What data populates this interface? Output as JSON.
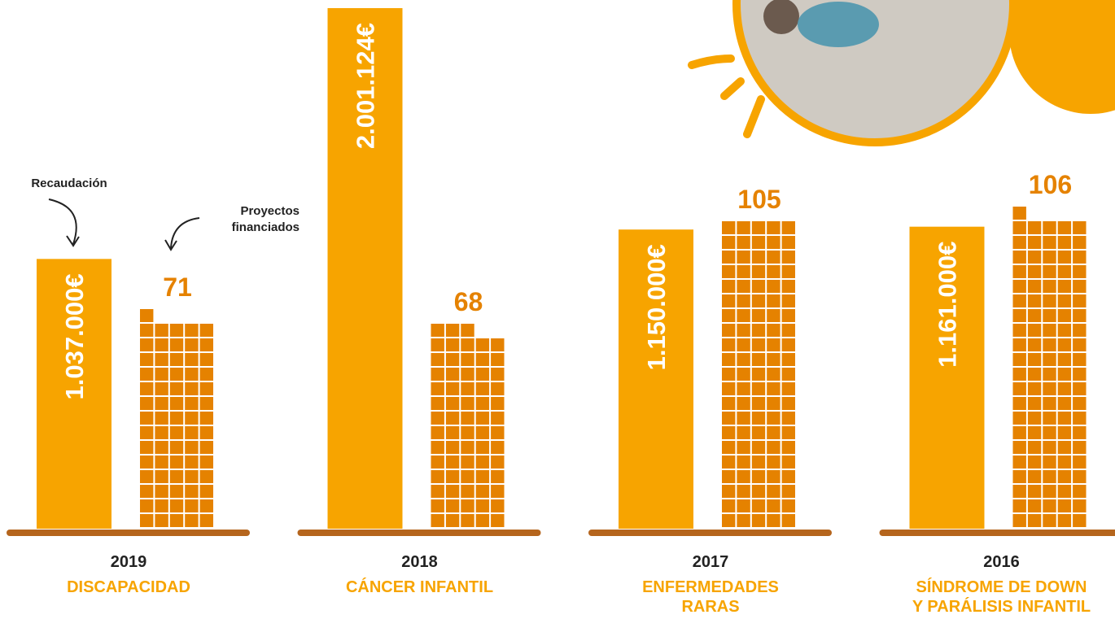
{
  "chart_data": {
    "type": "bar",
    "categories": [
      "2019",
      "2018",
      "2017",
      "2016"
    ],
    "themes": [
      [
        "DISCAPACIDAD"
      ],
      [
        "CÁNCER INFANTIL"
      ],
      [
        "ENFERMEDADES",
        "RARAS"
      ],
      [
        "SÍNDROME DE DOWN",
        "Y PARÁLISIS INFANTIL"
      ]
    ],
    "series": [
      {
        "name": "Recaudación",
        "color": "#f7a400",
        "values": [
          1037000,
          2001124,
          1150000,
          1161000
        ],
        "value_labels": [
          "1.037.000€",
          "2.001.124€",
          "1.150.000€",
          "1.161.000€"
        ]
      },
      {
        "name": "Proyectos financiados",
        "color": "#e58200",
        "values": [
          71,
          68,
          105,
          106
        ]
      }
    ]
  }
}
